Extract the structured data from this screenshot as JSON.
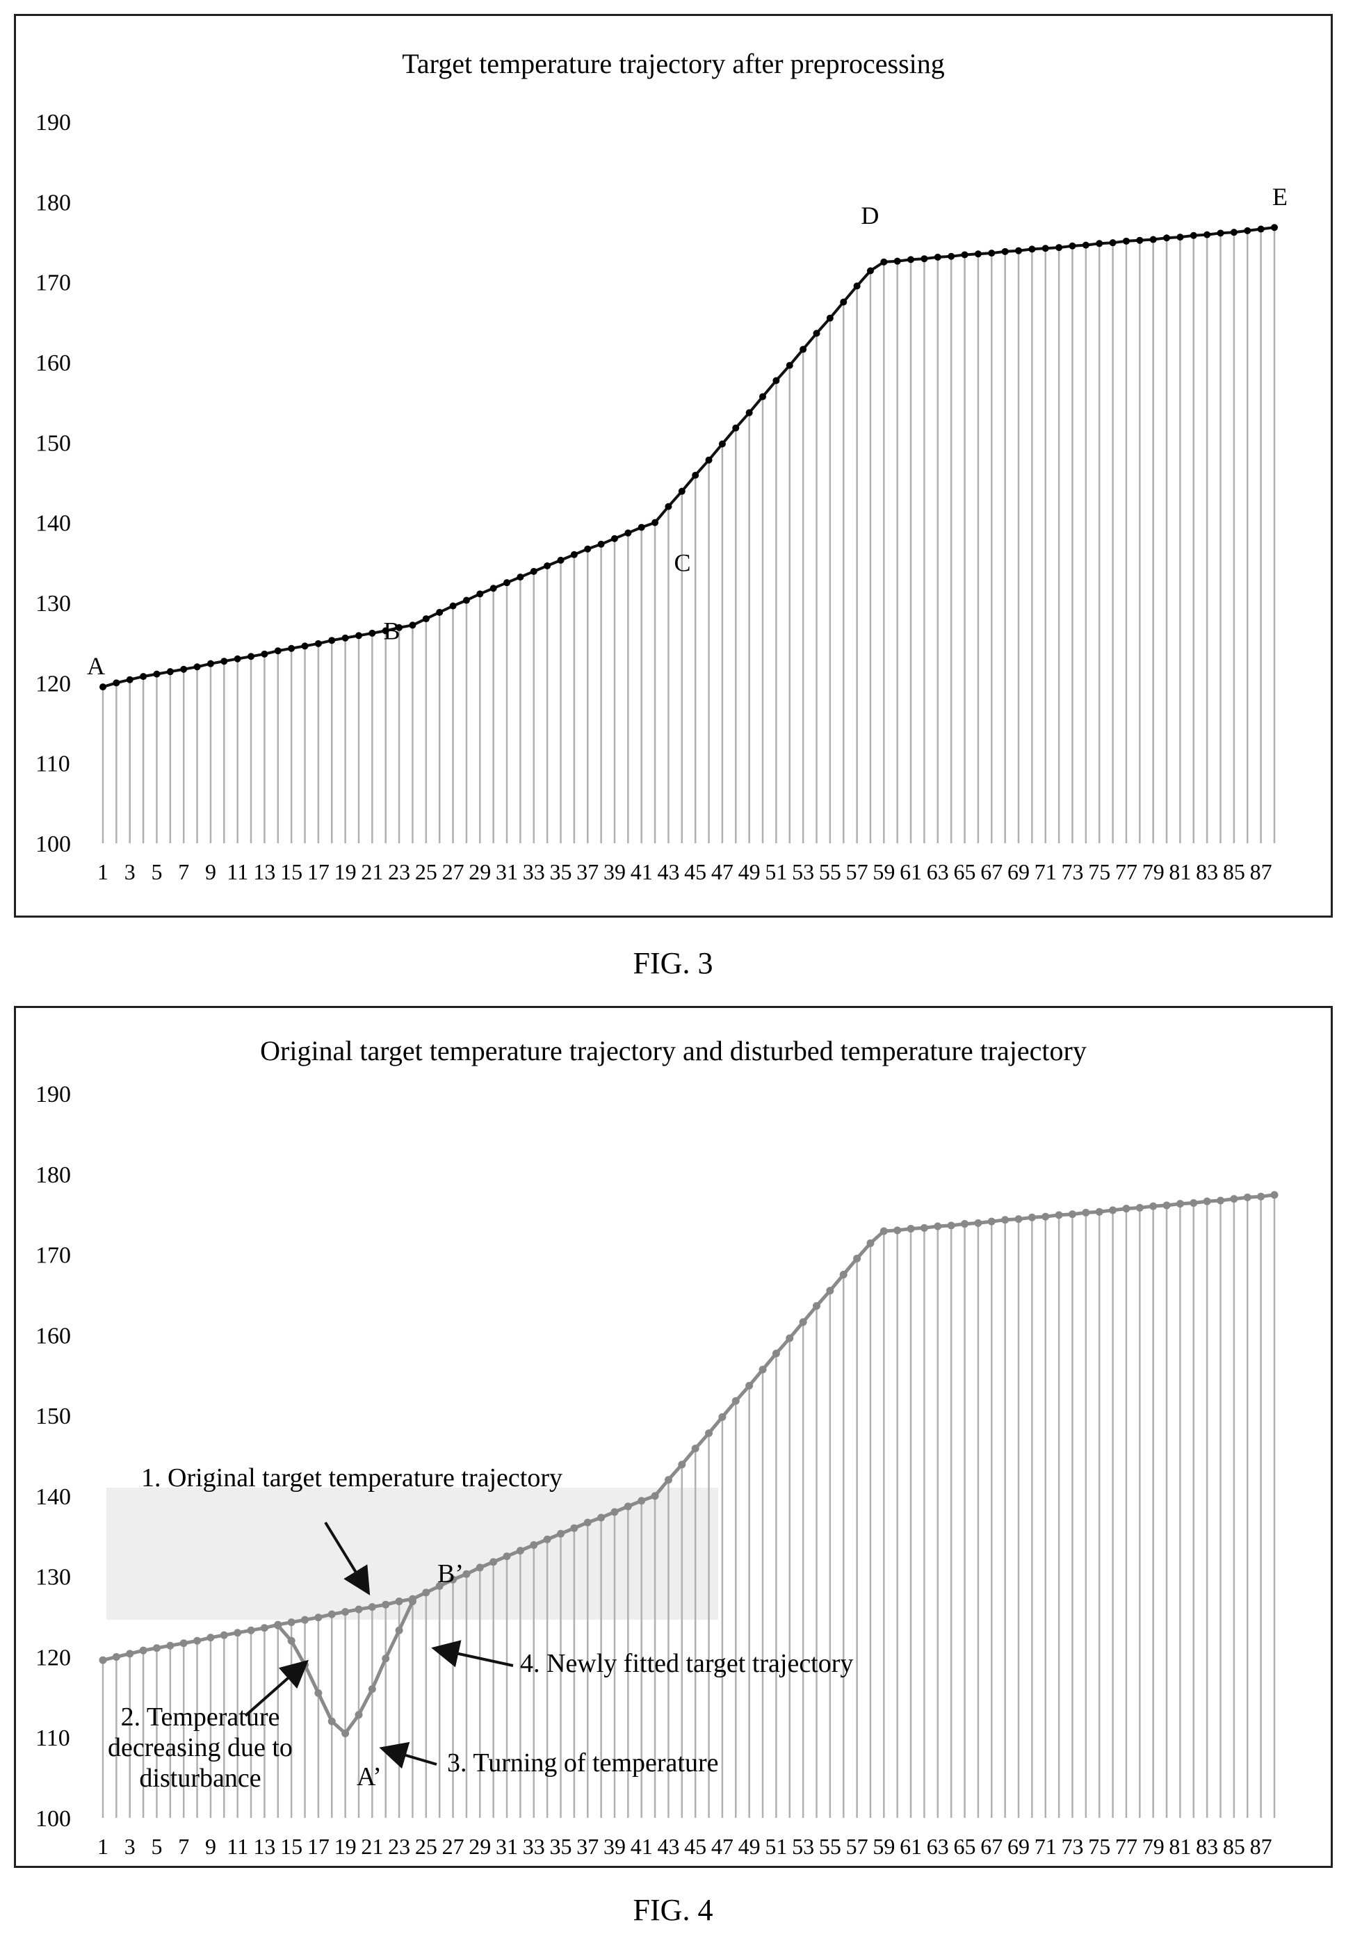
{
  "figures": [
    {
      "caption": "FIG. 3"
    },
    {
      "caption": "FIG. 4"
    }
  ],
  "colors": {
    "fig3_line": "#111111",
    "fig3_marker": "#000000",
    "fig4_line": "#8a8a8a",
    "fig4_marker": "#888888",
    "drop_lines": "#b0b0b0",
    "legend_fill": "#ececec"
  },
  "chart_data": [
    {
      "type": "line",
      "title": "Target temperature trajectory after preprocessing",
      "xlabel": "",
      "ylabel": "",
      "ylim": [
        100,
        190
      ],
      "y_ticks": [
        "100",
        "110",
        "120",
        "130",
        "140",
        "150",
        "160",
        "170",
        "180",
        "190"
      ],
      "x_tick_labels": [
        "1",
        "3",
        "5",
        "7",
        "9",
        "11",
        "13",
        "15",
        "17",
        "19",
        "21",
        "23",
        "25",
        "27",
        "29",
        "31",
        "33",
        "35",
        "37",
        "39",
        "41",
        "43",
        "45",
        "47",
        "49",
        "51",
        "53",
        "55",
        "57",
        "59",
        "61",
        "63",
        "65",
        "67",
        "69",
        "71",
        "73",
        "75",
        "77",
        "79",
        "81",
        "83",
        "85",
        "87"
      ],
      "grid": false,
      "drop_lines": true,
      "series": [
        {
          "values": [
            119.5,
            120.0,
            120.4,
            120.8,
            121.1,
            121.4,
            121.7,
            122.0,
            122.4,
            122.7,
            123.0,
            123.3,
            123.6,
            124.0,
            124.3,
            124.6,
            124.9,
            125.3,
            125.6,
            125.9,
            126.2,
            126.5,
            126.9,
            127.2,
            128.0,
            128.8,
            129.6,
            130.3,
            131.1,
            131.8,
            132.5,
            133.2,
            133.9,
            134.6,
            135.3,
            136.0,
            136.7,
            137.3,
            138.0,
            138.7,
            139.4,
            140.0,
            142.0,
            143.9,
            145.9,
            147.8,
            149.8,
            151.8,
            153.7,
            155.7,
            157.7,
            159.6,
            161.6,
            163.6,
            165.5,
            167.5,
            169.5,
            171.4,
            172.5,
            172.6,
            172.8,
            172.9,
            173.1,
            173.2,
            173.4,
            173.5,
            173.6,
            173.8,
            173.9,
            174.1,
            174.2,
            174.3,
            174.5,
            174.6,
            174.8,
            174.9,
            175.1,
            175.2,
            175.3,
            175.5,
            175.6,
            175.8,
            175.9,
            176.1,
            176.2,
            176.4,
            176.6,
            176.8
          ]
        }
      ],
      "annotations": [
        {
          "text": "A",
          "x": 1,
          "y": 119.5
        },
        {
          "text": "B",
          "x": 24,
          "y": 127.2
        },
        {
          "text": "C",
          "x": 43,
          "y": 140.0
        },
        {
          "text": "D",
          "x": 59,
          "y": 172.5
        },
        {
          "text": "E",
          "x": 88,
          "y": 176.8
        }
      ]
    },
    {
      "type": "line",
      "title": "Original target temperature trajectory and disturbed temperature trajectory",
      "xlabel": "",
      "ylabel": "",
      "ylim": [
        100,
        190
      ],
      "y_ticks": [
        "100",
        "110",
        "120",
        "130",
        "140",
        "150",
        "160",
        "170",
        "180",
        "190"
      ],
      "x_tick_labels": [
        "1",
        "3",
        "5",
        "7",
        "9",
        "11",
        "13",
        "15",
        "17",
        "19",
        "21",
        "23",
        "25",
        "27",
        "29",
        "31",
        "33",
        "35",
        "37",
        "39",
        "41",
        "43",
        "45",
        "47",
        "49",
        "51",
        "53",
        "55",
        "57",
        "59",
        "61",
        "63",
        "65",
        "67",
        "69",
        "71",
        "73",
        "75",
        "77",
        "79",
        "81",
        "83",
        "85",
        "87"
      ],
      "grid": false,
      "drop_lines": true,
      "series": [
        {
          "values": [
            119.6,
            120.0,
            120.4,
            120.8,
            121.1,
            121.4,
            121.7,
            122.0,
            122.4,
            122.7,
            123.0,
            123.3,
            123.6,
            124.0,
            124.3,
            124.6,
            124.9,
            125.3,
            125.6,
            125.9,
            126.2,
            126.5,
            126.9,
            127.2,
            128.0,
            128.8,
            129.6,
            130.3,
            131.1,
            131.8,
            132.5,
            133.2,
            133.9,
            134.6,
            135.3,
            136.0,
            136.7,
            137.3,
            138.0,
            138.7,
            139.4,
            140.0,
            142.0,
            143.9,
            145.9,
            147.8,
            149.8,
            151.8,
            153.7,
            155.7,
            157.7,
            159.6,
            161.6,
            163.6,
            165.5,
            167.5,
            169.5,
            171.4,
            172.9,
            173.0,
            173.2,
            173.3,
            173.5,
            173.6,
            173.8,
            173.9,
            174.1,
            174.3,
            174.4,
            174.6,
            174.7,
            174.9,
            175.0,
            175.2,
            175.3,
            175.5,
            175.7,
            175.8,
            176.0,
            176.1,
            176.3,
            176.4,
            176.6,
            176.7,
            176.9,
            177.1,
            177.2,
            177.4
          ]
        },
        {
          "x": [
            14,
            15,
            16,
            17,
            18,
            19,
            20,
            21,
            22,
            23,
            24
          ],
          "values": [
            123.9,
            122.0,
            119.0,
            115.5,
            112.0,
            110.5,
            112.8,
            116.0,
            119.8,
            123.3,
            126.9
          ]
        }
      ],
      "annotations": [
        {
          "text": "1. Original target temperature trajectory",
          "x": 18,
          "y": 140
        },
        {
          "text": "B’",
          "x": 24,
          "y": 129
        },
        {
          "text": "4. Newly fitted target trajectory",
          "x": 25,
          "y": 117
        },
        {
          "text": "2. Temperature decreasing due to disturbance",
          "x": 15,
          "y": 110
        },
        {
          "text": "A’",
          "x": 19,
          "y": 105
        },
        {
          "text": "3. Turning of temperature",
          "x": 21,
          "y": 106
        }
      ]
    }
  ],
  "fig4_annotations": {
    "label1": "1. Original target temperature trajectory",
    "label2_line1": "2. Temperature",
    "label2_line2": "decreasing due to",
    "label2_line3": "disturbance",
    "label3": "3. Turning of temperature",
    "label4": "4. Newly fitted target trajectory",
    "point_a": "A’",
    "point_b": "B’"
  }
}
